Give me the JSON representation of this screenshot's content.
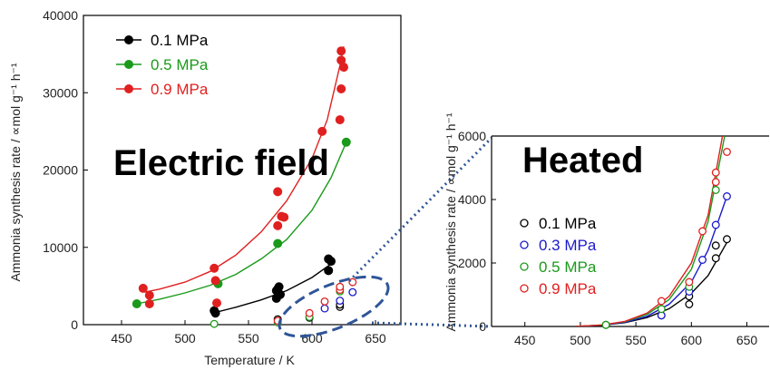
{
  "chart_data": [
    {
      "type": "scatter",
      "title": "Electric field",
      "xlabel": "Temperature / K",
      "ylabel": "Ammonia synthesis rate / ∝mol g⁻¹ h⁻¹",
      "xlim": [
        420,
        670
      ],
      "ylim": [
        0,
        40000
      ],
      "xticks": [
        450,
        500,
        550,
        600,
        650
      ],
      "yticks": [
        0,
        10000,
        20000,
        30000,
        40000
      ],
      "legend_position": "top-left",
      "series": [
        {
          "name": "0.1 MPa",
          "color": "#000000",
          "marker": "filled",
          "points": [
            [
              523,
              1800
            ],
            [
              524,
              1500
            ],
            [
              572,
              3400
            ],
            [
              572,
              4400
            ],
            [
              573,
              4600
            ],
            [
              574,
              4900
            ],
            [
              575,
              3900
            ],
            [
              613,
              7000
            ],
            [
              613,
              8500
            ],
            [
              615,
              8200
            ]
          ],
          "fit": [
            [
              522,
              1500
            ],
            [
              540,
              2250
            ],
            [
              560,
              3200
            ],
            [
              580,
              4400
            ],
            [
              600,
              6100
            ],
            [
              618,
              8200
            ]
          ]
        },
        {
          "name": "0.5 MPa",
          "color": "#1a9a1a",
          "marker": "filled",
          "points": [
            [
              462,
              2700
            ],
            [
              526,
              5300
            ],
            [
              573,
              10500
            ],
            [
              627,
              23600
            ]
          ],
          "fit": [
            [
              462,
              2700
            ],
            [
              480,
              3300
            ],
            [
              500,
              4100
            ],
            [
              520,
              5100
            ],
            [
              540,
              6500
            ],
            [
              560,
              8500
            ],
            [
              580,
              11000
            ],
            [
              600,
              14800
            ],
            [
              615,
              19000
            ],
            [
              627,
              23600
            ]
          ]
        },
        {
          "name": "0.9 MPa",
          "color": "#e02020",
          "marker": "filled",
          "points": [
            [
              467,
              4700
            ],
            [
              472,
              3800
            ],
            [
              472,
              2700
            ],
            [
              523,
              7300
            ],
            [
              524,
              5700
            ],
            [
              525,
              2800
            ],
            [
              573,
              17200
            ],
            [
              573,
              12800
            ],
            [
              576,
              14000
            ],
            [
              578,
              13900
            ],
            [
              608,
              25000
            ],
            [
              622,
              26500
            ],
            [
              623,
              30500
            ],
            [
              623,
              34200
            ],
            [
              623,
              35400
            ],
            [
              625,
              33300
            ]
          ],
          "fit": [
            [
              468,
              4200
            ],
            [
              480,
              4600
            ],
            [
              500,
              5500
            ],
            [
              520,
              6900
            ],
            [
              540,
              9000
            ],
            [
              560,
              12000
            ],
            [
              580,
              16000
            ],
            [
              600,
              21500
            ],
            [
              612,
              26500
            ],
            [
              622,
              33500
            ],
            [
              625,
              36000
            ]
          ]
        },
        {
          "name": "",
          "color": "#000000",
          "marker": "open",
          "points": [
            [
              573,
              700
            ],
            [
              598,
              900
            ],
            [
              622,
              2300
            ],
            [
              622,
              2600
            ]
          ]
        },
        {
          "name": "",
          "color": "#1a1acc",
          "marker": "open",
          "points": [
            [
              610,
              2100
            ],
            [
              622,
              3100
            ],
            [
              632,
              4200
            ]
          ]
        },
        {
          "name": "",
          "color": "#1a9a1a",
          "marker": "open",
          "points": [
            [
              523,
              100
            ],
            [
              573,
              300
            ],
            [
              598,
              1000
            ],
            [
              622,
              4300
            ]
          ]
        },
        {
          "name": "",
          "color": "#e02020",
          "marker": "open",
          "points": [
            [
              573,
              500
            ],
            [
              598,
              1500
            ],
            [
              610,
              3000
            ],
            [
              622,
              4500
            ],
            [
              622,
              4900
            ],
            [
              632,
              5500
            ]
          ]
        }
      ],
      "legend": [
        "0.1 MPa",
        "0.5 MPa",
        "0.9 MPa"
      ]
    },
    {
      "type": "scatter",
      "title": "Heated",
      "xlabel": "",
      "ylabel": "Ammonia synthesis rate / ∝mol g⁻¹ h⁻¹",
      "xlim": [
        420,
        670
      ],
      "ylim": [
        0,
        6000
      ],
      "xticks": [
        450,
        500,
        550,
        600,
        650
      ],
      "yticks": [
        0,
        2000,
        4000,
        6000
      ],
      "legend_position": "left",
      "series": [
        {
          "name": "0.1 MPa",
          "color": "#000000",
          "marker": "open",
          "points": [
            [
              523,
              50
            ],
            [
              573,
              350
            ],
            [
              598,
              700
            ],
            [
              598,
              950
            ],
            [
              622,
              2150
            ],
            [
              622,
              2550
            ],
            [
              632,
              2750
            ]
          ],
          "fit": [
            [
              495,
              0
            ],
            [
              520,
              40
            ],
            [
              540,
              120
            ],
            [
              560,
              280
            ],
            [
              580,
              560
            ],
            [
              600,
              1050
            ],
            [
              615,
              1600
            ],
            [
              632,
              2650
            ]
          ]
        },
        {
          "name": "0.3 MPa",
          "color": "#1a1acc",
          "marker": "open",
          "points": [
            [
              573,
              350
            ],
            [
              598,
              1100
            ],
            [
              610,
              2100
            ],
            [
              622,
              3200
            ],
            [
              632,
              4100
            ]
          ],
          "fit": [
            [
              495,
              0
            ],
            [
              520,
              40
            ],
            [
              540,
              130
            ],
            [
              560,
              320
            ],
            [
              580,
              700
            ],
            [
              600,
              1400
            ],
            [
              615,
              2400
            ],
            [
              632,
              4100
            ]
          ]
        },
        {
          "name": "0.5 MPa",
          "color": "#1a9a1a",
          "marker": "open",
          "points": [
            [
              523,
              50
            ],
            [
              573,
              550
            ],
            [
              598,
              1250
            ],
            [
              622,
              4300
            ]
          ],
          "fit": [
            [
              495,
              0
            ],
            [
              520,
              50
            ],
            [
              540,
              150
            ],
            [
              560,
              380
            ],
            [
              580,
              850
            ],
            [
              600,
              1800
            ],
            [
              615,
              3300
            ],
            [
              630,
              6000
            ]
          ]
        },
        {
          "name": "0.9 MPa",
          "color": "#e02020",
          "marker": "open",
          "points": [
            [
              573,
              800
            ],
            [
              598,
              1400
            ],
            [
              610,
              3000
            ],
            [
              622,
              4550
            ],
            [
              622,
              4850
            ],
            [
              632,
              5500
            ]
          ],
          "fit": [
            [
              495,
              0
            ],
            [
              520,
              50
            ],
            [
              540,
              160
            ],
            [
              560,
              420
            ],
            [
              580,
              950
            ],
            [
              600,
              2000
            ],
            [
              615,
              3500
            ],
            [
              628,
              6000
            ]
          ]
        }
      ],
      "legend": [
        "0.1 MPa",
        "0.3 MPa",
        "0.5 MPa",
        "0.9 MPa"
      ]
    }
  ],
  "zoom_colors": {
    "ellipse": "#2f5597",
    "connector": "#2f5597"
  }
}
